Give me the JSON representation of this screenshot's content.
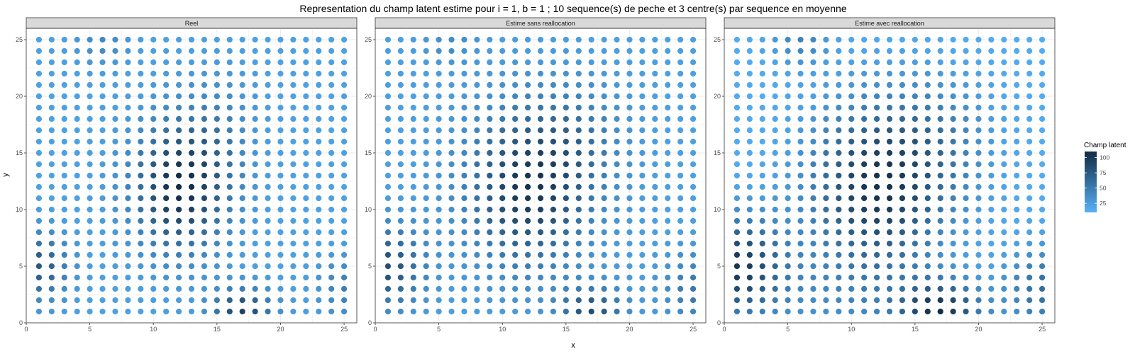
{
  "chart_data": {
    "type": "scatter",
    "title": "Representation du champ latent estime pour i = 1, b = 1 ; 10 sequence(s) de peche et 3 centre(s) par sequence en moyenne",
    "xlabel": "x",
    "ylabel": "y",
    "xlim": [
      0,
      26
    ],
    "ylim": [
      0,
      26
    ],
    "xticks": [
      "0",
      "5",
      "10",
      "15",
      "20",
      "25"
    ],
    "yticks": [
      "0",
      "5",
      "10",
      "15",
      "20",
      "25"
    ],
    "grid": true,
    "grid_points": {
      "x_from": 1,
      "x_to": 25,
      "y_from": 1,
      "y_to": 25
    },
    "color_scale": {
      "title": "Champ latent",
      "low_color": "#56B1F7",
      "high_color": "#132B43",
      "min": 10,
      "max": 110,
      "ticks": [
        "25",
        "50",
        "75",
        "100"
      ]
    },
    "legend_position": "right",
    "panels": [
      {
        "strip": "Reel",
        "field": {
          "base": 22,
          "components": [
            {
              "cx": 12,
              "cy": 12,
              "sx": 2.4,
              "sy": 3.8,
              "amp": 85
            },
            {
              "cx": 1,
              "cy": 5,
              "sx": 1.6,
              "sy": 2.0,
              "amp": 55
            },
            {
              "cx": 17,
              "cy": 1,
              "sx": 1.6,
              "sy": 1.4,
              "amp": 70
            },
            {
              "cx": 25,
              "cy": 3,
              "sx": 1.4,
              "sy": 2.0,
              "amp": 25
            },
            {
              "cx": 6,
              "cy": 25,
              "sx": 1.5,
              "sy": 1.5,
              "amp": 18
            },
            {
              "cx": 15,
              "cy": 16,
              "sx": 2.0,
              "sy": 4.0,
              "amp": 20
            }
          ]
        }
      },
      {
        "strip": "Estime sans reallocation",
        "field": {
          "base": 23,
          "components": [
            {
              "cx": 12,
              "cy": 12,
              "sx": 3.2,
              "sy": 4.6,
              "amp": 78
            },
            {
              "cx": 1,
              "cy": 5,
              "sx": 1.9,
              "sy": 2.4,
              "amp": 60
            },
            {
              "cx": 17,
              "cy": 1,
              "sx": 1.7,
              "sy": 1.5,
              "amp": 60
            },
            {
              "cx": 25,
              "cy": 3,
              "sx": 1.6,
              "sy": 2.2,
              "amp": 30
            },
            {
              "cx": 6,
              "cy": 25,
              "sx": 1.5,
              "sy": 1.5,
              "amp": 15
            },
            {
              "cx": 16,
              "cy": 16,
              "sx": 2.5,
              "sy": 3.5,
              "amp": 22
            }
          ]
        }
      },
      {
        "strip": "Estime avec reallocation",
        "field": {
          "base": 14,
          "components": [
            {
              "cx": 12,
              "cy": 12,
              "sx": 3.6,
              "sy": 5.0,
              "amp": 88
            },
            {
              "cx": 1,
              "cy": 5,
              "sx": 2.6,
              "sy": 3.0,
              "amp": 85
            },
            {
              "cx": 17,
              "cy": 1,
              "sx": 2.2,
              "sy": 1.8,
              "amp": 85
            },
            {
              "cx": 25,
              "cy": 3,
              "sx": 2.0,
              "sy": 2.6,
              "amp": 45
            },
            {
              "cx": 6,
              "cy": 25,
              "sx": 1.6,
              "sy": 1.6,
              "amp": 30
            },
            {
              "cx": 17,
              "cy": 16,
              "sx": 3.0,
              "sy": 4.0,
              "amp": 25
            },
            {
              "cx": 10,
              "cy": 2,
              "sx": 5.0,
              "sy": 3.0,
              "amp": 18
            }
          ]
        }
      }
    ]
  }
}
